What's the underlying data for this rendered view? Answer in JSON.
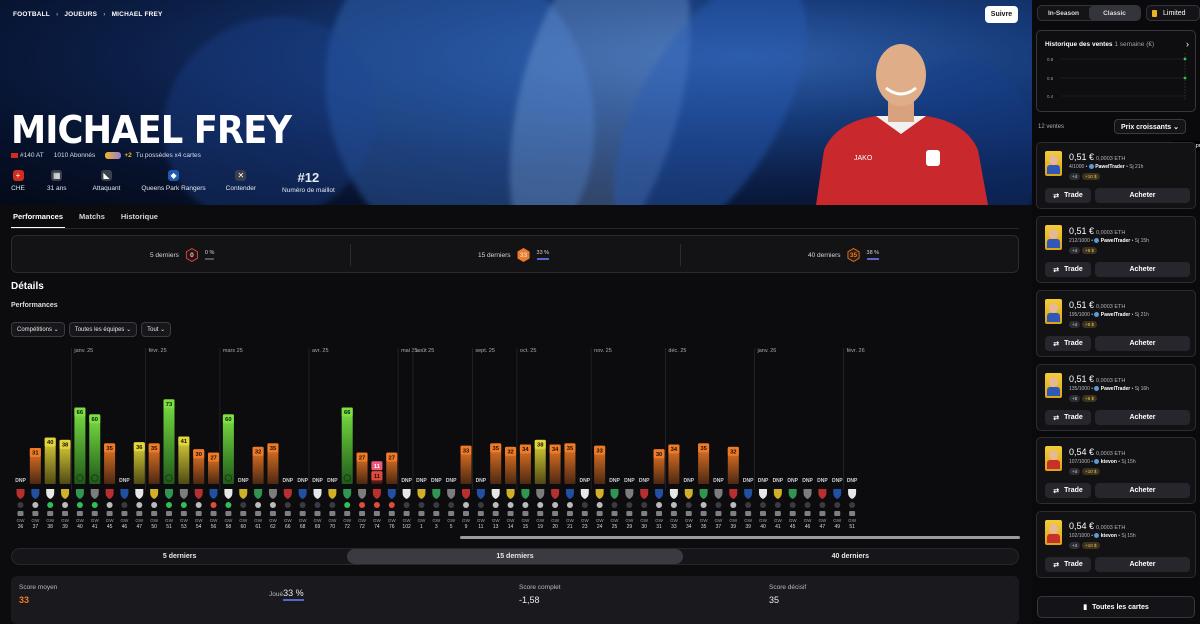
{
  "breadcrumb": [
    "FOOTBALL",
    "JOUEURS",
    "MICHAEL FREY"
  ],
  "follow_label": "Suivre",
  "player": {
    "name": "MICHAEL FREY",
    "rank": "#140 AT",
    "followers": "1010 Abonnés",
    "owned_badge": "+2",
    "owned": "Tu possèdes x4 cartes",
    "infos": [
      {
        "label": "CHE",
        "icon": "swiss-flag-icon",
        "color": "#d52b1e"
      },
      {
        "label": "31 ans",
        "icon": "calendar-icon",
        "color": "#3b3f4a"
      },
      {
        "label": "Attaquant",
        "icon": "boot-icon",
        "color": "#3b3f4a"
      },
      {
        "label": "Queens Park Rangers",
        "icon": "qpr-crest-icon",
        "color": "#1d5bb0"
      },
      {
        "label": "Contender",
        "icon": "contender-icon",
        "color": "#3b3f4a"
      },
      {
        "big": "#12",
        "label": "Numéro de maillot"
      }
    ]
  },
  "tabs": [
    "Performances",
    "Matchs",
    "Historique"
  ],
  "summary": [
    {
      "label": "5 derniers",
      "score": "0",
      "pct": "0 %",
      "color": "#3a1b1b",
      "border": "#e04b3a"
    },
    {
      "label": "15 derniers",
      "score": "33",
      "pct": "33 %",
      "color": "#f07a25",
      "border": "#f07a25"
    },
    {
      "label": "40 derniers",
      "score": "35",
      "pct": "38 %",
      "color": "#3a2416",
      "border": "#f07a25"
    }
  ],
  "details_title": "Détails",
  "performances_title": "Performances",
  "filters": [
    "Compétitions ⌄",
    "Toutes les équipes ⌄",
    "Tout ⌄"
  ],
  "chart_data": {
    "type": "bar",
    "title": "",
    "ylim": [
      0,
      100
    ],
    "month_labels": [
      {
        "label": "janv. 25",
        "at": 4
      },
      {
        "label": "févr. 25",
        "at": 9
      },
      {
        "label": "mars 25",
        "at": 14
      },
      {
        "label": "avr. 25",
        "at": 20
      },
      {
        "label": "mai 25",
        "at": 26
      },
      {
        "label": "août 25",
        "at": 27
      },
      {
        "label": "sept. 25",
        "at": 31
      },
      {
        "label": "oct. 25",
        "at": 34
      },
      {
        "label": "nov. 25",
        "at": 39
      },
      {
        "label": "déc. 25",
        "at": 44
      },
      {
        "label": "janv. 26",
        "at": 50
      },
      {
        "label": "févr. 26",
        "at": 56
      }
    ],
    "categories": [
      "GW 36",
      "GW 37",
      "GW 38",
      "GW 39",
      "GW 40",
      "GW 41",
      "GW 45",
      "GW 46",
      "GW 47",
      "GW 50",
      "GW 51",
      "GW 53",
      "GW 54",
      "GW 56",
      "GW 58",
      "GW 60",
      "GW 61",
      "GW 62",
      "GW 66",
      "GW 68",
      "GW 69",
      "GW 70",
      "GW 72",
      "GW 72",
      "GW 74",
      "GW 76",
      "GW 102",
      "GW 1",
      "GW 3",
      "GW 5",
      "GW 9",
      "GW 11",
      "GW 13",
      "GW 14",
      "GW 15",
      "GW 19",
      "GW 20",
      "GW 21",
      "GW 23",
      "GW 24",
      "GW 25",
      "GW 29",
      "GW 30",
      "GW 31",
      "GW 33",
      "GW 34",
      "GW 35",
      "GW 37",
      "GW 39",
      "GW 39",
      "GW 40",
      "GW 41",
      "GW 45",
      "GW 46",
      "GW 47",
      "GW 49",
      "GW 51"
    ],
    "values": [
      null,
      31,
      40,
      38,
      66,
      60,
      35,
      null,
      36,
      35,
      73,
      41,
      30,
      27,
      60,
      null,
      32,
      35,
      null,
      null,
      null,
      null,
      66,
      27,
      11,
      27,
      null,
      null,
      null,
      null,
      33,
      null,
      35,
      32,
      34,
      38,
      34,
      35,
      null,
      33,
      null,
      null,
      null,
      30,
      34,
      null,
      35,
      null,
      32,
      null,
      null,
      null,
      null,
      null,
      null,
      null,
      null
    ],
    "dnp_label": "DNP",
    "extra_mark": {
      "index": 24,
      "label": "11"
    }
  },
  "range_tabs": [
    "5 derniers",
    "15 derniers",
    "40 derniers"
  ],
  "bottom_stats": [
    {
      "label": "Score moyen",
      "value": "33",
      "color": "#f07a25"
    },
    {
      "label": "Joué",
      "value": "33 %",
      "color": "#eaeaea"
    },
    {
      "label": "Score complet",
      "value": "-1,58",
      "color": "#eaeaea"
    },
    {
      "label": "Score décisif",
      "value": "35",
      "color": "#eaeaea"
    }
  ],
  "sidebar": {
    "modes": [
      "In-Season",
      "Classic"
    ],
    "rarity": "Limited",
    "history_title": "Historique des ventes",
    "history_range": "1 semaine",
    "history_currency": "(€)",
    "history_ticks": [
      "0.8",
      "0.6",
      "0.4"
    ],
    "sales_count": "12 ventes",
    "sort": "Prix croissants ⌄",
    "tooltip": "Meilleur prix",
    "offers": [
      {
        "price": "0,51 €",
        "eth": "0,0003 ETH",
        "serial": "4/1000",
        "seller": "PawelTrader",
        "time": "• Sj 21h",
        "chip1": "+4",
        "chip2": "+10 $",
        "kind": "blue"
      },
      {
        "price": "0,51 €",
        "eth": "0,0003 ETH",
        "serial": "212/1000",
        "seller": "PawelTrader",
        "time": "• Sj 15h",
        "chip1": "+4",
        "chip2": "+8 $",
        "kind": "blue"
      },
      {
        "price": "0,51 €",
        "eth": "0,0003 ETH",
        "serial": "195/1000",
        "seller": "PawelTrader",
        "time": "• Sj 21h",
        "chip1": "+4",
        "chip2": "+8 $",
        "kind": "blue"
      },
      {
        "price": "0,51 €",
        "eth": "0,0003 ETH",
        "serial": "135/1000",
        "seller": "PawelTrader",
        "time": "• Sj 16h",
        "chip1": "+5",
        "chip2": "+8 $",
        "kind": "blue"
      },
      {
        "price": "0,54 €",
        "eth": "0,0003 ETH",
        "serial": "107/1000",
        "seller": "ktevon",
        "time": "• Sj 15h",
        "chip1": "+4",
        "chip2": "+10 $",
        "kind": "red"
      },
      {
        "price": "0,54 €",
        "eth": "0,0003 ETH",
        "serial": "102/1000",
        "seller": "ktevon",
        "time": "• Sj 15h",
        "chip1": "+4",
        "chip2": "+10 $",
        "kind": "red"
      }
    ],
    "trade_label": "Trade",
    "buy_label": "Acheter",
    "all_cards": "Toutes les cartes"
  }
}
